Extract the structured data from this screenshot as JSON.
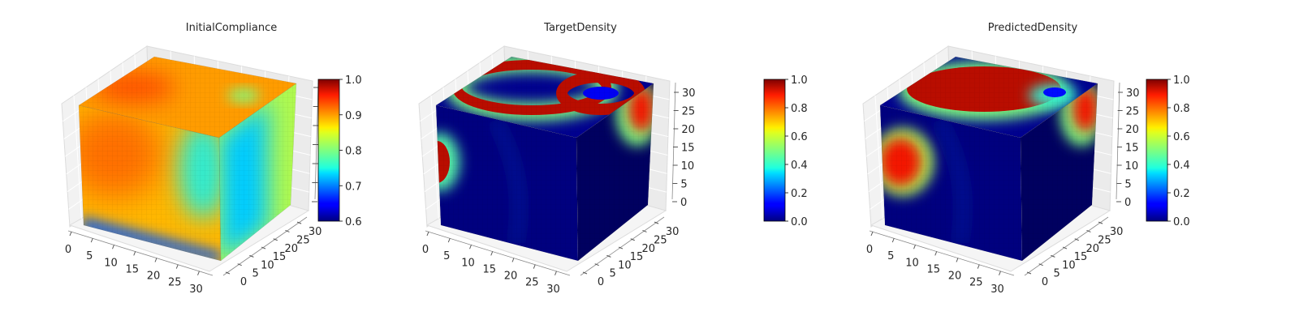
{
  "chart_data": [
    {
      "type": "voxel-3d",
      "title": "InitialCompliance",
      "x_ticks": [
        "0",
        "5",
        "10",
        "15",
        "20",
        "25",
        "30"
      ],
      "y_ticks": [
        "0",
        "5",
        "10",
        "15",
        "20",
        "25",
        "30"
      ],
      "z_ticks": [],
      "colormap": "jet",
      "colorbar": {
        "range": [
          0.6,
          1.0
        ],
        "ticks": [
          "0.6",
          "0.7",
          "0.8",
          "0.9",
          "1.0"
        ]
      },
      "grid": "on",
      "field_description": "nearly uniform 0.70-0.85; higher (~0.85) near top-left, lower (~0.62) along bottom edge and right face"
    },
    {
      "type": "voxel-3d",
      "title": "TargetDensity",
      "x_ticks": [
        "0",
        "5",
        "10",
        "15",
        "20",
        "25",
        "30"
      ],
      "y_ticks": [
        "0",
        "5",
        "10",
        "15",
        "20",
        "25",
        "30"
      ],
      "z_ticks": [
        "0",
        "5",
        "10",
        "15",
        "20",
        "25",
        "30"
      ],
      "colormap": "jet",
      "colorbar": {
        "range": [
          0.0,
          1.0
        ],
        "ticks": [
          "0.0",
          "0.2",
          "0.4",
          "0.6",
          "0.8",
          "1.0"
        ]
      },
      "grid": "on",
      "field_description": "mostly 0; density 1.0 ring arcs on top face, blob on left of front face, patch on upper right face"
    },
    {
      "type": "voxel-3d",
      "title": "PredictedDensity",
      "x_ticks": [
        "0",
        "5",
        "10",
        "15",
        "20",
        "25",
        "30"
      ],
      "y_ticks": [
        "0",
        "5",
        "10",
        "15",
        "20",
        "25",
        "30"
      ],
      "z_ticks": [
        "0",
        "5",
        "10",
        "15",
        "20",
        "25",
        "30"
      ],
      "colormap": "jet",
      "colorbar": {
        "range": [
          0.0,
          1.0
        ],
        "ticks": [
          "0.0",
          "0.2",
          "0.4",
          "0.6",
          "0.8",
          "1.0"
        ]
      },
      "grid": "on",
      "field_description": "similar to target with broader red regions on top face and larger blob on front face"
    }
  ]
}
